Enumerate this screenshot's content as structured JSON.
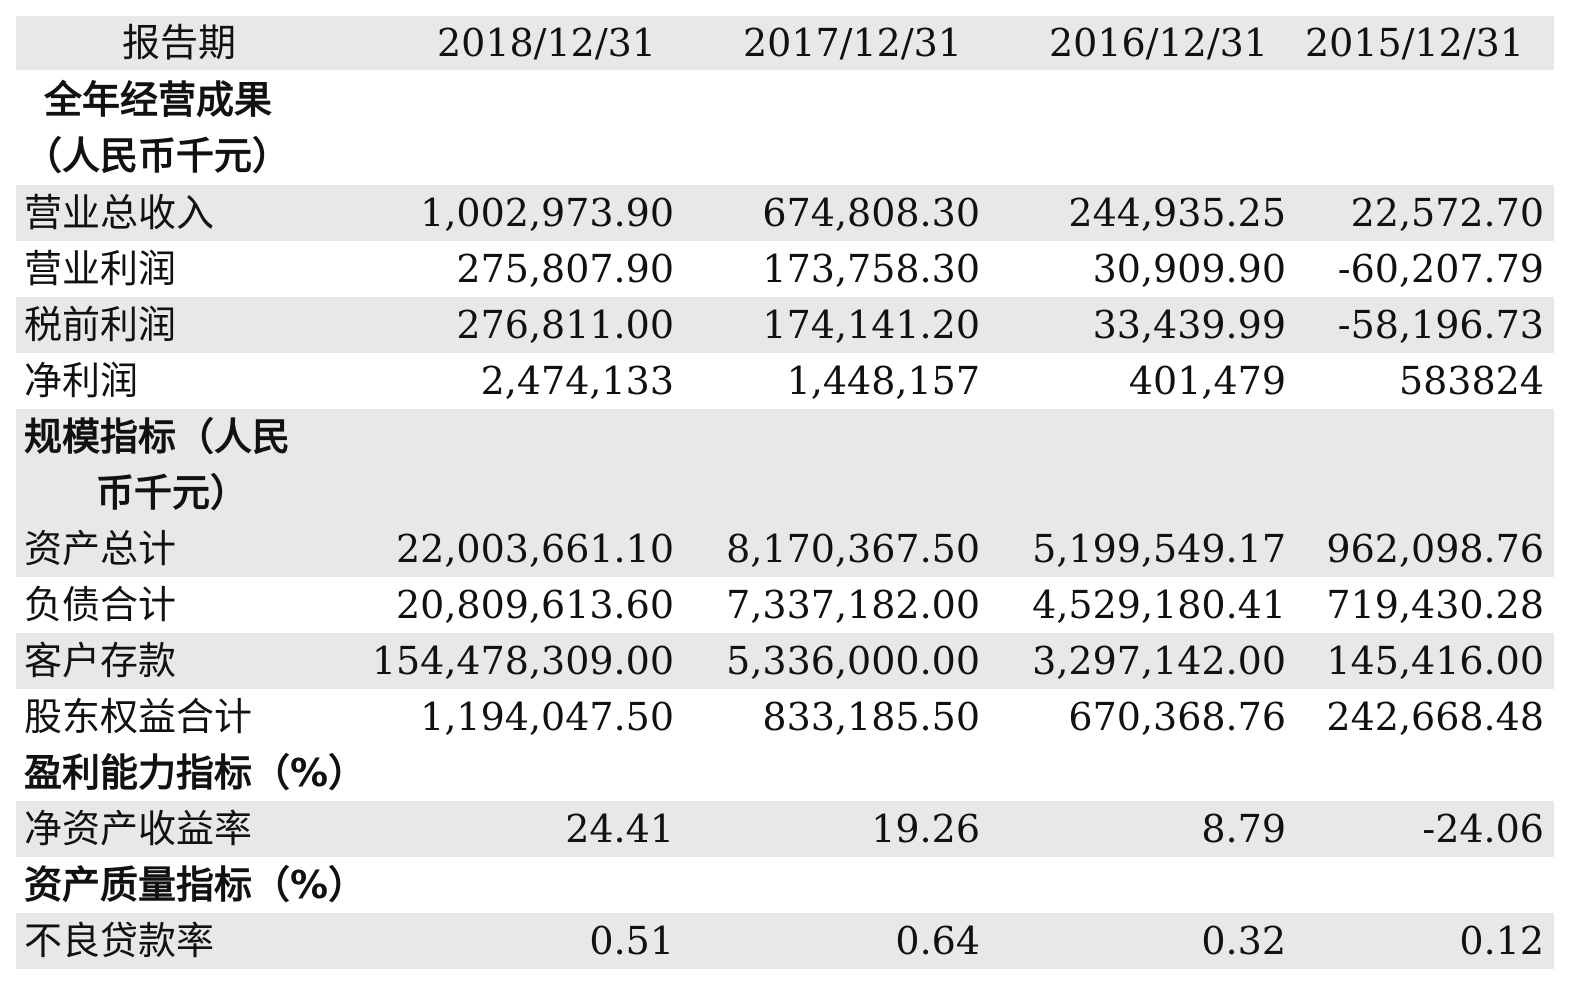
{
  "header": {
    "label": "报告期",
    "periods": [
      "2018/12/31",
      "2017/12/31",
      "2016/12/31",
      "2015/12/31"
    ]
  },
  "sections": [
    {
      "title_line1": "全年经营成果",
      "title_line2": "（人民币千元）",
      "rows": [
        {
          "label": "营业总收入",
          "values": [
            "1,002,973.90",
            "674,808.30",
            "244,935.25",
            "22,572.70"
          ]
        },
        {
          "label": "营业利润",
          "values": [
            "275,807.90",
            "173,758.30",
            "30,909.90",
            "-60,207.79"
          ]
        },
        {
          "label": "税前利润",
          "values": [
            "276,811.00",
            "174,141.20",
            "33,439.99",
            "-58,196.73"
          ]
        },
        {
          "label": "净利润",
          "values": [
            "2,474,133",
            "1,448,157",
            "401,479",
            "583824"
          ]
        }
      ]
    },
    {
      "title_line1": "规模指标（人民",
      "title_line2": "币千元）",
      "rows": [
        {
          "label": "资产总计",
          "values": [
            "22,003,661.10",
            "8,170,367.50",
            "5,199,549.17",
            "962,098.76"
          ]
        },
        {
          "label": "负债合计",
          "values": [
            "20,809,613.60",
            "7,337,182.00",
            "4,529,180.41",
            "719,430.28"
          ]
        },
        {
          "label": "客户存款",
          "values": [
            "154,478,309.00",
            "5,336,000.00",
            "3,297,142.00",
            "145,416.00"
          ]
        },
        {
          "label": "股东权益合计",
          "values": [
            "1,194,047.50",
            "833,185.50",
            "670,368.76",
            "242,668.48"
          ]
        }
      ]
    },
    {
      "title_line1": "盈利能力指标（%）",
      "rows": [
        {
          "label": "净资产收益率",
          "values": [
            "24.41",
            "19.26",
            "8.79",
            "-24.06"
          ]
        }
      ]
    },
    {
      "title_line1": "资产质量指标（%）",
      "rows": [
        {
          "label": "不良贷款率",
          "values": [
            "0.51",
            "0.64",
            "0.32",
            "0.12"
          ]
        }
      ]
    }
  ]
}
